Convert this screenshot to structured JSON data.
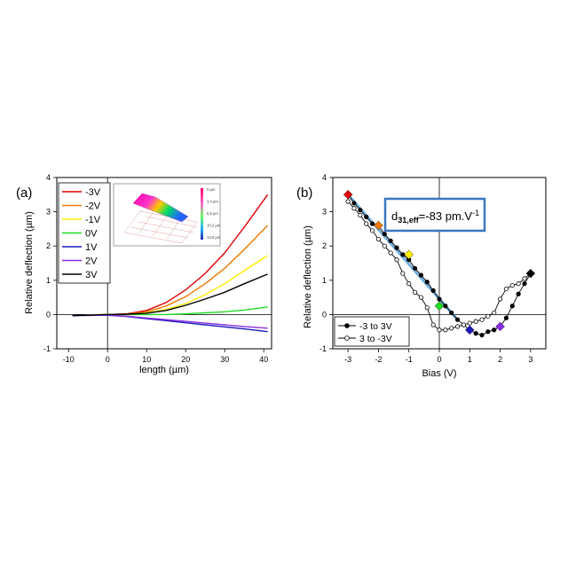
{
  "chart_data": [
    {
      "panel_label": "(a)",
      "type": "line",
      "xlabel": "length (µm)",
      "ylabel": "Relative deflection (µm)",
      "xlim": [
        -13,
        42
      ],
      "ylim": [
        -1,
        4
      ],
      "xticks": [
        -10,
        0,
        10,
        20,
        30,
        40
      ],
      "yticks": [
        -1,
        0,
        1,
        2,
        3,
        4
      ],
      "legend_position": "top-left",
      "series": [
        {
          "name": "-3V",
          "color": "#e00000",
          "x": [
            -9,
            0,
            5,
            10,
            15,
            20,
            25,
            30,
            35,
            41
          ],
          "y": [
            -0.03,
            0.0,
            0.02,
            0.12,
            0.35,
            0.72,
            1.2,
            1.8,
            2.55,
            3.5
          ]
        },
        {
          "name": "-2V",
          "color": "#f07800",
          "x": [
            -9,
            0,
            5,
            10,
            15,
            20,
            25,
            30,
            35,
            41
          ],
          "y": [
            -0.03,
            0.0,
            0.01,
            0.08,
            0.25,
            0.52,
            0.9,
            1.35,
            1.9,
            2.6
          ]
        },
        {
          "name": "-1V",
          "color": "#ffee00",
          "x": [
            -9,
            0,
            5,
            10,
            15,
            20,
            25,
            30,
            35,
            41
          ],
          "y": [
            -0.03,
            0.0,
            0.0,
            0.05,
            0.15,
            0.32,
            0.58,
            0.9,
            1.28,
            1.72
          ]
        },
        {
          "name": "0V",
          "color": "#22dd22",
          "x": [
            -9,
            0,
            5,
            10,
            15,
            20,
            25,
            30,
            35,
            41
          ],
          "y": [
            -0.03,
            0.0,
            0.0,
            0.0,
            0.0,
            0.02,
            0.05,
            0.08,
            0.13,
            0.22
          ]
        },
        {
          "name": "1V",
          "color": "#1a1ab8",
          "x": [
            -9,
            0,
            5,
            10,
            15,
            20,
            25,
            30,
            35,
            41
          ],
          "y": [
            -0.03,
            -0.02,
            -0.06,
            -0.12,
            -0.18,
            -0.24,
            -0.3,
            -0.36,
            -0.42,
            -0.5
          ]
        },
        {
          "name": "2V",
          "color": "#8a2be2",
          "x": [
            -9,
            0,
            5,
            10,
            15,
            20,
            25,
            30,
            35,
            41
          ],
          "y": [
            -0.03,
            -0.02,
            -0.05,
            -0.1,
            -0.15,
            -0.2,
            -0.25,
            -0.3,
            -0.35,
            -0.4
          ]
        },
        {
          "name": "3V",
          "color": "#000000",
          "x": [
            -9,
            0,
            5,
            10,
            15,
            20,
            25,
            30,
            35,
            41
          ],
          "y": [
            -0.03,
            0.0,
            0.01,
            0.04,
            0.12,
            0.27,
            0.45,
            0.65,
            0.9,
            1.18
          ]
        }
      ],
      "inset": {
        "description": "3D surface map",
        "colorbar_labels": [
          "0 µm",
          "3,4 µm",
          "6,8 µm",
          "10,2 µm",
          "13,6 µm"
        ]
      }
    },
    {
      "panel_label": "(b)",
      "type": "line",
      "xlabel": "Bias (V)",
      "ylabel": "Relative deflection (µm)",
      "xlim": [
        -3.5,
        3.5
      ],
      "ylim": [
        -1,
        4
      ],
      "xticks": [
        -3,
        -2,
        -1,
        0,
        1,
        2,
        3
      ],
      "yticks": [
        -1,
        0,
        1,
        2,
        3,
        4
      ],
      "legend_position": "bottom-left",
      "annotation": {
        "main": "d",
        "sub": "31,eff",
        "rest": "=-83 pm.V",
        "sup": "-1",
        "border_color": "#3a78c0"
      },
      "series": [
        {
          "name": "-3 to 3V",
          "marker": "filled-circle",
          "color": "#000000",
          "x": [
            -3,
            -2.8,
            -2.6,
            -2.4,
            -2.2,
            -2,
            -1.8,
            -1.6,
            -1.4,
            -1.2,
            -1,
            -0.8,
            -0.6,
            -0.4,
            -0.2,
            0,
            0.2,
            0.4,
            0.6,
            0.8,
            1,
            1.2,
            1.4,
            1.6,
            1.8,
            2,
            2.2,
            2.4,
            2.6,
            2.8,
            3
          ],
          "y": [
            3.5,
            3.25,
            3.05,
            2.85,
            2.65,
            2.6,
            2.35,
            2.15,
            1.95,
            1.75,
            1.6,
            1.35,
            1.15,
            0.95,
            0.7,
            0.45,
            0.25,
            0.05,
            -0.15,
            -0.3,
            -0.45,
            -0.55,
            -0.6,
            -0.5,
            -0.45,
            -0.35,
            -0.1,
            0.25,
            0.6,
            0.9,
            1.2
          ]
        },
        {
          "name": "3 to -3V",
          "marker": "open-circle",
          "color": "#000000",
          "x": [
            3,
            2.8,
            2.6,
            2.4,
            2.2,
            2,
            1.8,
            1.6,
            1.4,
            1.2,
            1,
            0.8,
            0.6,
            0.4,
            0.2,
            0,
            -0.2,
            -0.4,
            -0.6,
            -0.8,
            -1,
            -1.2,
            -1.4,
            -1.6,
            -1.8,
            -2,
            -2.2,
            -2.4,
            -2.6,
            -2.8,
            -3
          ],
          "y": [
            1.2,
            1.05,
            0.9,
            0.85,
            0.75,
            0.45,
            0.05,
            -0.05,
            -0.15,
            -0.2,
            -0.25,
            -0.3,
            -0.35,
            -0.4,
            -0.45,
            -0.45,
            -0.3,
            0.2,
            0.5,
            0.65,
            0.9,
            1.2,
            1.6,
            1.8,
            2.0,
            2.2,
            2.45,
            2.65,
            2.9,
            3.1,
            3.3
          ]
        }
      ],
      "highlight_markers": [
        {
          "x": -3,
          "y": 3.5,
          "color": "#e00000"
        },
        {
          "x": -2,
          "y": 2.6,
          "color": "#f07800"
        },
        {
          "x": -1,
          "y": 1.75,
          "color": "#ffee00"
        },
        {
          "x": 0,
          "y": 0.25,
          "color": "#22dd22"
        },
        {
          "x": 1,
          "y": -0.45,
          "color": "#1a1ab8"
        },
        {
          "x": 2,
          "y": -0.35,
          "color": "#8a2be2"
        },
        {
          "x": 3,
          "y": 1.2,
          "color": "#000000"
        }
      ],
      "fit_line": {
        "x": [
          -3,
          0.6
        ],
        "y": [
          3.5,
          -0.15
        ],
        "color": "#4a9cd8"
      }
    }
  ]
}
